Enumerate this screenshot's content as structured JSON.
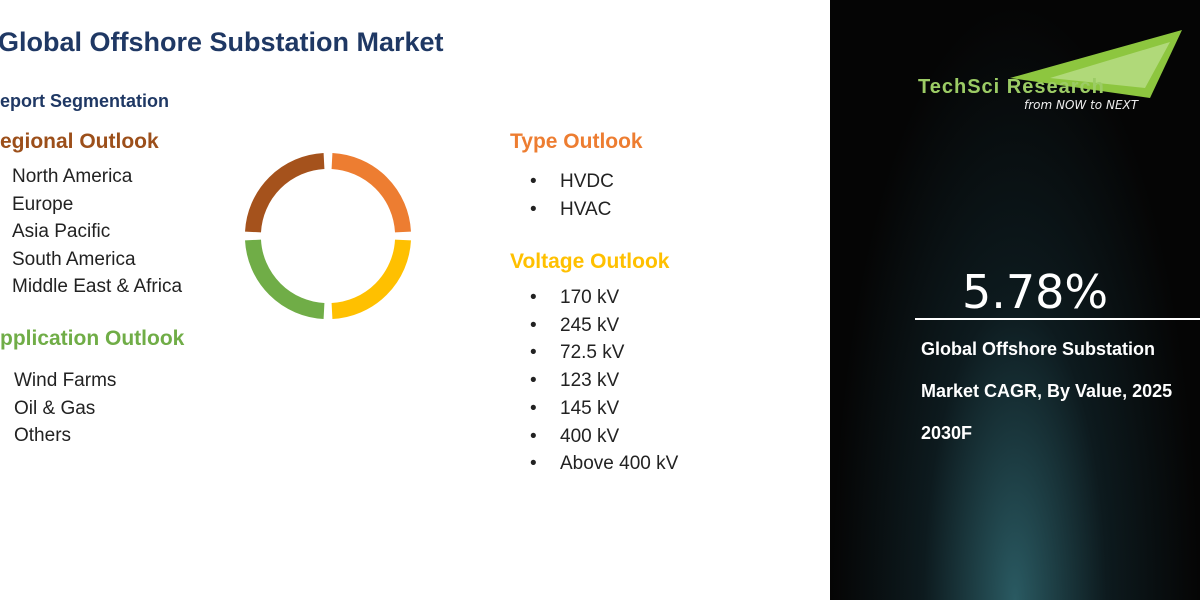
{
  "header": {
    "title": "Global Offshore Substation Market",
    "subtitle": "eport Segmentation"
  },
  "regional": {
    "heading": "egional Outlook",
    "items": [
      "North America",
      "Europe",
      "Asia Pacific",
      "South America",
      "Middle East &  Africa"
    ]
  },
  "application": {
    "heading": "pplication Outlook",
    "items": [
      "Wind Farms",
      "Oil & Gas",
      "Others"
    ]
  },
  "type": {
    "heading": "Type Outlook",
    "items": [
      "HVDC",
      "HVAC"
    ]
  },
  "voltage": {
    "heading": "Voltage Outlook",
    "items": [
      "170 kV",
      "245 kV",
      "72.5 kV",
      "123 kV",
      "145 kV",
      "400 kV",
      "Above 400 kV"
    ]
  },
  "brand": {
    "name": "TechSci Research",
    "tagline": "from NOW to NEXT"
  },
  "highlight": {
    "value": "5.78%",
    "caption_lines": [
      "Global Offshore Substation",
      "Market CAGR, By Value, 2025",
      "2030F"
    ]
  }
}
